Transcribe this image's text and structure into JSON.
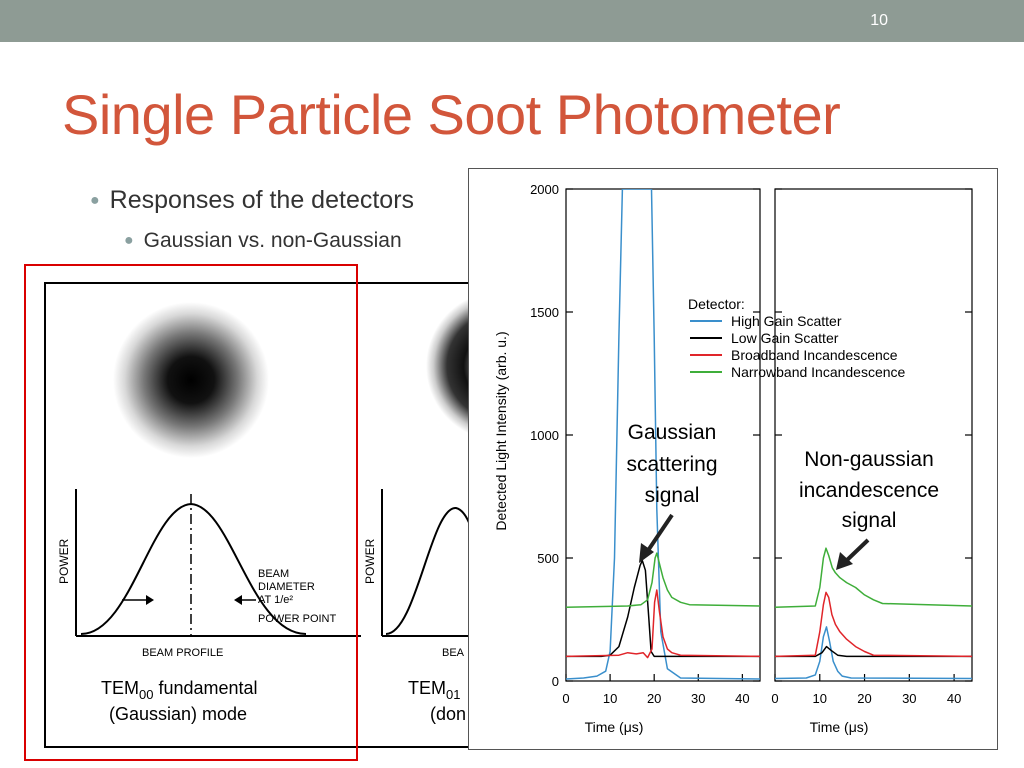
{
  "slide_number": "10",
  "title": "Single Particle Soot Photometer",
  "bullets": {
    "level1": "Responses of the detectors",
    "level2": "Gaussian vs. non-Gaussian"
  },
  "laser_figure": {
    "power_axis": "POWER",
    "beam_profile_label": "BEAM PROFILE",
    "beam_profile_label_clipped": "BEA",
    "beam_diameter_label": [
      "BEAM",
      "DIAMETER",
      "AT 1/e²",
      "POWER POINT"
    ],
    "mode1_line1_prefix": "TEM",
    "mode1_line1_sub": "00",
    "mode1_line1_suffix": " fundamental",
    "mode1_line2": "(Gaussian) mode",
    "mode2_line1_prefix": "TEM",
    "mode2_line1_sub": "01",
    "mode2_line2": "(don"
  },
  "chart_data": {
    "type": "line",
    "ylabel": "Detected Light Intensity (arb. u.)",
    "xlabel": "Time (μs)",
    "ylim": [
      0,
      2000
    ],
    "yticks": [
      0,
      500,
      1000,
      1500,
      2000
    ],
    "legend_title": "Detector:",
    "legend": [
      {
        "name": "High Gain Scatter",
        "color": "#3a8fcc"
      },
      {
        "name": "Low Gain Scatter",
        "color": "#000000"
      },
      {
        "name": "Broadband Incandescence",
        "color": "#e0252a"
      },
      {
        "name": "Narrowband Incandescence",
        "color": "#3fae3a"
      }
    ],
    "panels": [
      {
        "xlim": [
          0,
          44
        ],
        "xticks": [
          0,
          10,
          20,
          30,
          40
        ],
        "annotation": [
          "Gaussian",
          "scattering",
          "signal"
        ],
        "series": [
          {
            "name": "High Gain Scatter",
            "color": "#3a8fcc",
            "x": [
              0,
              4,
              7,
              9,
              10,
              11,
              12,
              12.8,
              13.3,
              19.4,
              20,
              20.6,
              21.5,
              23,
              26,
              44
            ],
            "y": [
              8,
              12,
              20,
              40,
              120,
              500,
              1400,
              2000,
              2000,
              2000,
              1400,
              700,
              200,
              50,
              12,
              8
            ]
          },
          {
            "name": "Low Gain Scatter",
            "color": "#000000",
            "x": [
              0,
              8,
              10,
              12,
              14,
              15.5,
              16.8,
              17.3,
              18,
              18.8,
              19.3,
              20,
              22,
              44
            ],
            "y": [
              100,
              100,
              105,
              140,
              260,
              380,
              470,
              490,
              450,
              250,
              120,
              100,
              100,
              100
            ]
          },
          {
            "name": "Broadband Incandescence",
            "color": "#e0252a",
            "x": [
              0,
              12,
              14,
              16,
              17.5,
              18.5,
              19.5,
              20.1,
              20.6,
              21.2,
              22,
              23,
              24,
              26,
              44
            ],
            "y": [
              100,
              105,
              115,
              110,
              115,
              95,
              130,
              320,
              370,
              280,
              180,
              130,
              115,
              105,
              100
            ]
          },
          {
            "name": "Narrowband Incandescence",
            "color": "#3fae3a",
            "x": [
              0,
              14,
              17,
              18.5,
              19.5,
              20.2,
              20.6,
              21.3,
              22,
              23,
              24,
              26,
              28,
              44
            ],
            "y": [
              300,
              305,
              310,
              330,
              400,
              500,
              520,
              470,
              420,
              370,
              340,
              320,
              310,
              305
            ]
          }
        ]
      },
      {
        "xlim": [
          0,
          44
        ],
        "xticks": [
          0,
          10,
          20,
          30,
          40
        ],
        "annotation": [
          "Non-gaussian",
          "incandescence",
          "signal"
        ],
        "series": [
          {
            "name": "High Gain Scatter",
            "color": "#3a8fcc",
            "x": [
              0,
              7,
              9,
              10,
              10.8,
              11.5,
              12.2,
              13,
              14,
              15,
              17,
              44
            ],
            "y": [
              10,
              12,
              25,
              80,
              180,
              220,
              160,
              80,
              40,
              20,
              12,
              10
            ]
          },
          {
            "name": "Low Gain Scatter",
            "color": "#000000",
            "x": [
              0,
              9,
              10.5,
              11.5,
              12.5,
              14,
              16,
              44
            ],
            "y": [
              100,
              100,
              115,
              140,
              125,
              105,
              100,
              100
            ]
          },
          {
            "name": "Broadband Incandescence",
            "color": "#e0252a",
            "x": [
              0,
              9,
              10,
              10.8,
              11.4,
              12,
              12.7,
              13.5,
              14.5,
              16,
              18,
              20,
              22,
              44
            ],
            "y": [
              100,
              105,
              200,
              310,
              360,
              340,
              270,
              230,
              200,
              170,
              140,
              120,
              105,
              100
            ]
          },
          {
            "name": "Narrowband Incandescence",
            "color": "#3fae3a",
            "x": [
              0,
              9,
              10,
              10.8,
              11.4,
              12,
              12.8,
              13.5,
              14.5,
              16,
              18,
              20,
              22,
              24,
              44
            ],
            "y": [
              300,
              305,
              380,
              500,
              540,
              510,
              460,
              440,
              420,
              400,
              380,
              350,
              330,
              315,
              305
            ]
          }
        ]
      }
    ]
  }
}
